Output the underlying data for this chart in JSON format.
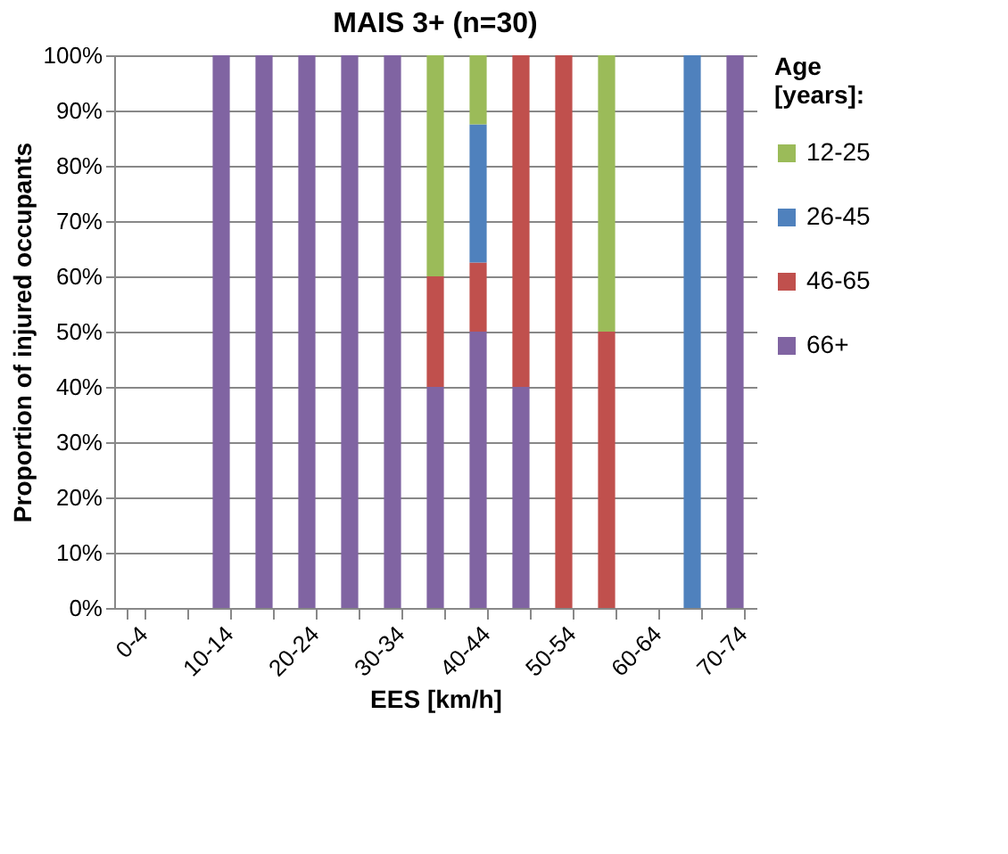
{
  "chart_data": {
    "type": "bar",
    "title": "MAIS 3+ (n=30)",
    "xlabel": "EES [km/h]",
    "ylabel": "Proportion of injured occupants",
    "legend_title": "Age [years]:",
    "categories": [
      "0-4",
      null,
      "10-14",
      null,
      "20-24",
      null,
      "30-34",
      null,
      "40-44",
      null,
      "50-54",
      null,
      "60-64",
      null,
      "70-74"
    ],
    "stacked": true,
    "series": [
      {
        "name": "66+",
        "color": "#8064a2",
        "values": [
          null,
          null,
          100,
          100,
          100,
          100,
          100,
          40,
          50,
          40,
          null,
          null,
          null,
          null,
          100
        ]
      },
      {
        "name": "46-65",
        "color": "#c0504d",
        "values": [
          null,
          null,
          null,
          null,
          null,
          null,
          null,
          20,
          12.5,
          60,
          100,
          50,
          null,
          null,
          null
        ]
      },
      {
        "name": "26-45",
        "color": "#4f81bd",
        "values": [
          null,
          null,
          null,
          null,
          null,
          null,
          null,
          null,
          25,
          null,
          null,
          null,
          null,
          100,
          null
        ]
      },
      {
        "name": "12-25",
        "color": "#9bbb59",
        "values": [
          null,
          null,
          null,
          null,
          null,
          null,
          null,
          40,
          12.5,
          null,
          null,
          50,
          null,
          null,
          null
        ]
      }
    ],
    "ylim": [
      0,
      100
    ],
    "yticks": [
      {
        "value": 0,
        "label": "0%"
      },
      {
        "value": 10,
        "label": "10%"
      },
      {
        "value": 20,
        "label": "20%"
      },
      {
        "value": 30,
        "label": "30%"
      },
      {
        "value": 40,
        "label": "40%"
      },
      {
        "value": 50,
        "label": "50%"
      },
      {
        "value": 60,
        "label": "60%"
      },
      {
        "value": 70,
        "label": "70%"
      },
      {
        "value": 80,
        "label": "80%"
      },
      {
        "value": 90,
        "label": "90%"
      },
      {
        "value": 100,
        "label": "100%"
      }
    ],
    "grid": "y",
    "legend": "right"
  }
}
